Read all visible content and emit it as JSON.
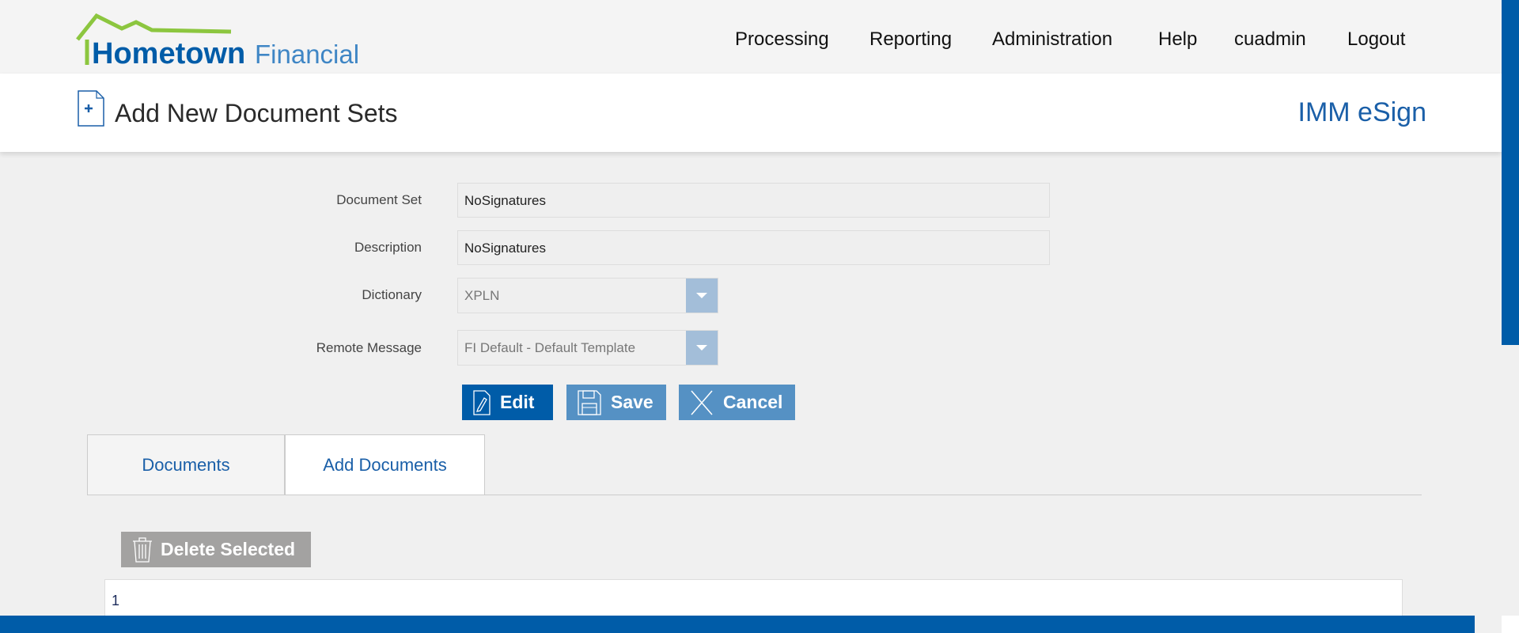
{
  "brand": {
    "logo_text_1": "Hometown",
    "logo_text_2": "Financial",
    "app_name": "IMM eSign"
  },
  "nav": [
    "Processing",
    "Reporting",
    "Administration",
    "Help",
    "cuadmin",
    "Logout"
  ],
  "header": {
    "title": "Add New Document Sets"
  },
  "form": {
    "document_set": {
      "label": "Document Set",
      "value": "NoSignatures"
    },
    "description": {
      "label": "Description",
      "value": "NoSignatures"
    },
    "dictionary": {
      "label": "Dictionary",
      "value": "XPLN"
    },
    "remote_message": {
      "label": "Remote Message",
      "value": "FI Default - Default Template"
    }
  },
  "buttons": {
    "edit": "Edit",
    "save": "Save",
    "cancel": "Cancel",
    "delete_selected": "Delete Selected"
  },
  "tabs": [
    {
      "label": "Documents",
      "active": false
    },
    {
      "label": "Add Documents",
      "active": true
    }
  ],
  "table": {
    "rows": [
      [
        "1"
      ]
    ]
  },
  "colors": {
    "primary": "#005ca8",
    "button_light": "#5591c4",
    "logo_green": "#8cc63f",
    "disabled": "#a3a2a1"
  }
}
